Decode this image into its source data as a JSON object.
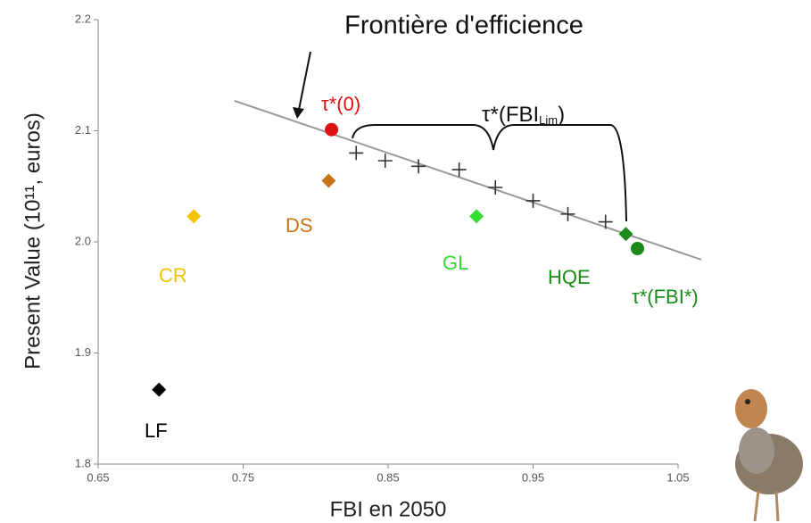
{
  "chart_data": {
    "type": "scatter",
    "title": "Frontière d'efficience",
    "x_label": "FBI en 2050",
    "y_label": "Present Value (10¹¹, euros)",
    "xlim": [
      0.65,
      1.05
    ],
    "xticks": [
      0.65,
      0.75,
      0.85,
      0.95,
      1.05
    ],
    "ylim": [
      1.8,
      2.2
    ],
    "yticks": [
      1.8,
      1.9,
      {
        "value": 2,
        "label": "2.0"
      },
      2.1,
      2.2
    ],
    "frontier": {
      "color": "#999999",
      "x": [
        0.744,
        1.066
      ],
      "y": [
        2.127,
        1.984
      ]
    },
    "series": [
      {
        "name": "LF",
        "color": "#000000",
        "marker": "diamond",
        "x": [
          0.692
        ],
        "values": [
          1.867
        ]
      },
      {
        "name": "CR",
        "color": "#f5c400",
        "marker": "diamond",
        "x": [
          0.716
        ],
        "values": [
          2.023
        ]
      },
      {
        "name": "DS",
        "color": "#c8741a",
        "marker": "diamond",
        "x": [
          0.809
        ],
        "values": [
          2.055
        ]
      },
      {
        "name": "τ*(0)",
        "color": "#dd1111",
        "marker": "circle",
        "x": [
          0.811
        ],
        "values": [
          2.101
        ]
      },
      {
        "name": "GL",
        "color": "#33dd33",
        "marker": "diamond",
        "x": [
          0.911
        ],
        "values": [
          2.023
        ]
      },
      {
        "name": "HQE",
        "color": "#1a8a1a",
        "marker": "diamond",
        "x": [
          1.014
        ],
        "values": [
          2.007
        ]
      },
      {
        "name": "τ*(FBI*)",
        "color": "#1a8a1a",
        "marker": "circle",
        "x": [
          1.022
        ],
        "values": [
          1.994
        ]
      },
      {
        "color": "#333333",
        "marker": "cross",
        "x": [
          0.828,
          0.848,
          0.871,
          0.899,
          0.924,
          0.95,
          0.974,
          1.0
        ],
        "values": [
          2.08,
          2.073,
          2.068,
          2.065,
          2.049,
          2.037,
          2.025,
          2.018
        ]
      }
    ],
    "annotations": {
      "lim": [
        "τ*(FBI",
        "Lim",
        ")"
      ]
    }
  }
}
